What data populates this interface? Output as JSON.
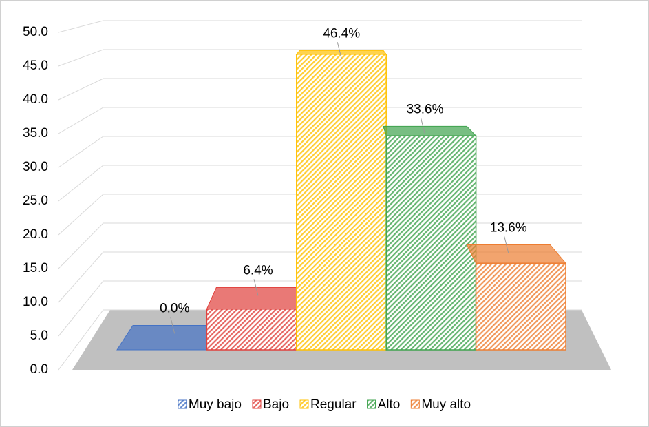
{
  "chart_data": {
    "type": "bar3d",
    "series": [
      {
        "name": "Muy bajo",
        "color": "#4472c4",
        "values": [
          0.0
        ],
        "value_labels": [
          "0.0%"
        ]
      },
      {
        "name": "Bajo",
        "color": "#e0403c",
        "values": [
          6.4
        ],
        "value_labels": [
          "6.4%"
        ]
      },
      {
        "name": "Regular",
        "color": "#ffc000",
        "values": [
          46.4
        ],
        "value_labels": [
          "46.4%"
        ]
      },
      {
        "name": "Alto",
        "color": "#3fa34d",
        "values": [
          33.6
        ],
        "value_labels": [
          "33.6%"
        ]
      },
      {
        "name": "Muy alto",
        "color": "#ed7d31",
        "values": [
          13.6
        ],
        "value_labels": [
          "13.6%"
        ]
      }
    ],
    "ylim": [
      0,
      50
    ],
    "yticks": [
      {
        "value": 0,
        "label": "0.0"
      },
      {
        "value": 5,
        "label": "5.0"
      },
      {
        "value": 10,
        "label": "10.0"
      },
      {
        "value": 15,
        "label": "15.0"
      },
      {
        "value": 20,
        "label": "20.0"
      },
      {
        "value": 25,
        "label": "25.0"
      },
      {
        "value": 30,
        "label": "30.0"
      },
      {
        "value": 35,
        "label": "35.0"
      },
      {
        "value": 40,
        "label": "40.0"
      },
      {
        "value": 45,
        "label": "45.0"
      },
      {
        "value": 50,
        "label": "50.0"
      }
    ],
    "grid": true,
    "legend": "bottom"
  }
}
